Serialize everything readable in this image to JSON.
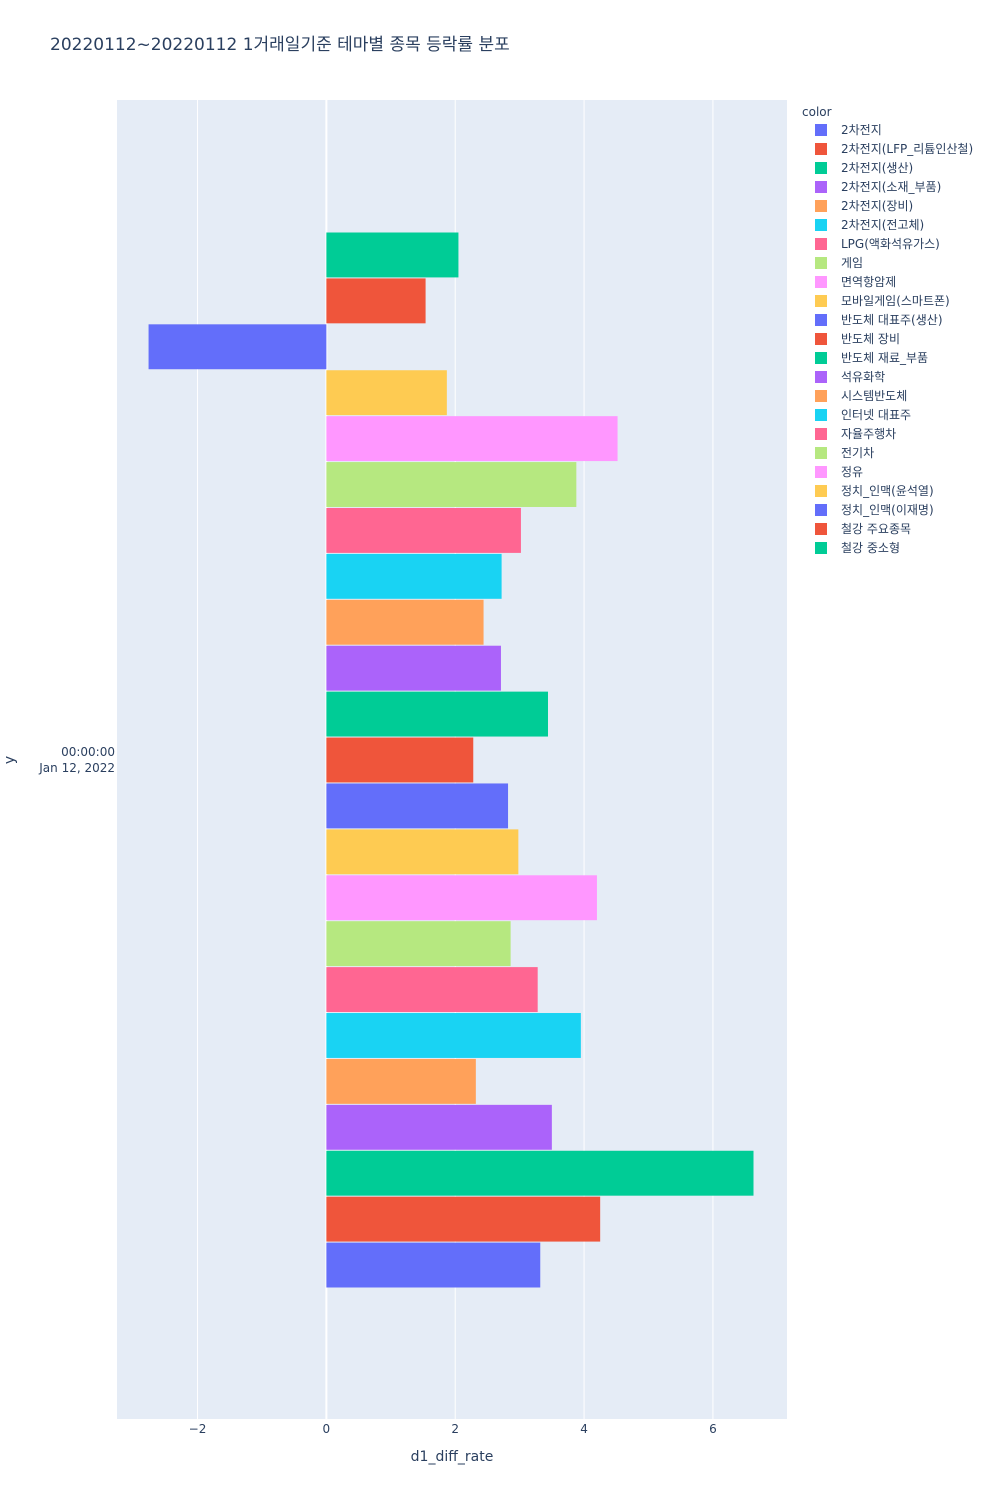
{
  "chart_data": {
    "type": "bar",
    "orientation": "horizontal",
    "barmode": "group",
    "title": "20220112~20220112 1거래일기준 테마별 종목 등락률 분포",
    "xlabel": "d1_diff_rate",
    "ylabel": "y",
    "xlim": [
      -3.25,
      7.15
    ],
    "xticks": [
      -2,
      0,
      2,
      4,
      6
    ],
    "xtick_labels": [
      "−2",
      "0",
      "2",
      "4",
      "6"
    ],
    "y_category_line1": "00:00:00",
    "y_category_line2": "Jan 12, 2022",
    "grid": true,
    "legend_title": "color",
    "legend_position": "right",
    "series": [
      {
        "name": "2차전지",
        "value": 3.32,
        "color": "#636EFA"
      },
      {
        "name": "2차전지(LFP_리튬인산철)",
        "value": 4.25,
        "color": "#EF553B"
      },
      {
        "name": "2차전지(생산)",
        "value": 6.63,
        "color": "#00CC96"
      },
      {
        "name": "2차전지(소재_부품)",
        "value": 3.5,
        "color": "#AB63FA"
      },
      {
        "name": "2차전지(장비)",
        "value": 2.32,
        "color": "#FFA15A"
      },
      {
        "name": "2차전지(전고체)",
        "value": 3.95,
        "color": "#19D3F3"
      },
      {
        "name": "LPG(액화석유가스)",
        "value": 3.28,
        "color": "#FF6692"
      },
      {
        "name": "게임",
        "value": 2.86,
        "color": "#B6E880"
      },
      {
        "name": "면역항암제",
        "value": 4.2,
        "color": "#FF97FF"
      },
      {
        "name": "모바일게임(스마트폰)",
        "value": 2.98,
        "color": "#FECB52"
      },
      {
        "name": "반도체 대표주(생산)",
        "value": 2.82,
        "color": "#636EFA"
      },
      {
        "name": "반도체 장비",
        "value": 2.28,
        "color": "#EF553B"
      },
      {
        "name": "반도체 재료_부품",
        "value": 3.44,
        "color": "#00CC96"
      },
      {
        "name": "석유화학",
        "value": 2.71,
        "color": "#AB63FA"
      },
      {
        "name": "시스템반도체",
        "value": 2.44,
        "color": "#FFA15A"
      },
      {
        "name": "인터넷 대표주",
        "value": 2.72,
        "color": "#19D3F3"
      },
      {
        "name": "자율주행차",
        "value": 3.02,
        "color": "#FF6692"
      },
      {
        "name": "전기차",
        "value": 3.88,
        "color": "#B6E880"
      },
      {
        "name": "정유",
        "value": 4.52,
        "color": "#FF97FF"
      },
      {
        "name": "정치_인맥(윤석열)",
        "value": 1.87,
        "color": "#FECB52"
      },
      {
        "name": "정치_인맥(이재명)",
        "value": -2.76,
        "color": "#636EFA"
      },
      {
        "name": "철강 주요종목",
        "value": 1.54,
        "color": "#EF553B"
      },
      {
        "name": "철강 중소형",
        "value": 2.05,
        "color": "#00CC96"
      }
    ]
  }
}
